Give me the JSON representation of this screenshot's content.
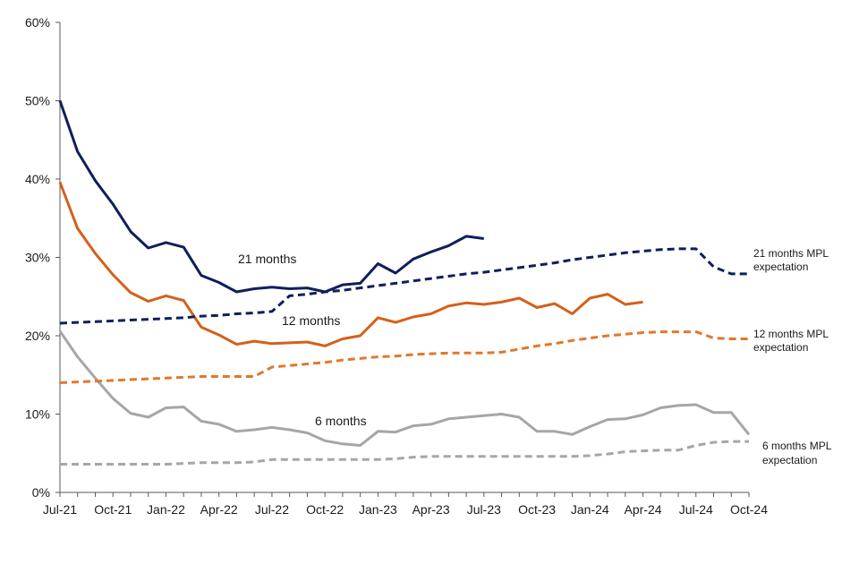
{
  "chart_data": {
    "type": "line",
    "title": "",
    "xlabel": "",
    "ylabel": "",
    "ylim": [
      0,
      60
    ],
    "y_ticks": [
      "0%",
      "10%",
      "20%",
      "30%",
      "40%",
      "50%",
      "60%"
    ],
    "y_tick_values": [
      0,
      10,
      20,
      30,
      40,
      50,
      60
    ],
    "x_tick_labels": [
      "Jul-21",
      "Oct-21",
      "Jan-22",
      "Apr-22",
      "Jul-22",
      "Oct-22",
      "Jan-23",
      "Apr-23",
      "Jul-23",
      "Oct-23",
      "Jan-24",
      "Apr-24",
      "Jul-24",
      "Oct-24"
    ],
    "x_range": [
      "Jul-21",
      "Oct-24"
    ],
    "grid": false,
    "legend": "none",
    "series": [
      {
        "name": "21 months",
        "color": "#0f1f5c",
        "style": "solid",
        "values": [
          50.0,
          43.5,
          39.8,
          36.8,
          33.3,
          31.2,
          31.9,
          31.3,
          27.7,
          26.8,
          25.6,
          26.0,
          26.2,
          26.0,
          26.1,
          25.6,
          26.5,
          26.7,
          29.2,
          28.0,
          29.8,
          30.7,
          31.5,
          32.7,
          32.4
        ]
      },
      {
        "name": "12 months",
        "color": "#d4601a",
        "style": "solid",
        "values": [
          39.6,
          33.7,
          30.5,
          27.8,
          25.5,
          24.4,
          25.1,
          24.5,
          21.1,
          20.1,
          18.9,
          19.3,
          19.0,
          19.1,
          19.2,
          18.7,
          19.6,
          20.0,
          22.3,
          21.7,
          22.4,
          22.8,
          23.8,
          24.2,
          24.0,
          24.3,
          24.8,
          23.6,
          24.1,
          22.8,
          24.8,
          25.3,
          24.0,
          24.3
        ]
      },
      {
        "name": "6 months",
        "color": "#a6a6a6",
        "style": "solid",
        "values": [
          20.6,
          17.3,
          14.6,
          12.0,
          10.1,
          9.6,
          10.8,
          10.9,
          9.1,
          8.7,
          7.8,
          8.0,
          8.3,
          8.0,
          7.6,
          6.6,
          6.2,
          6.0,
          7.8,
          7.7,
          8.5,
          8.7,
          9.4,
          9.6,
          9.8,
          10.0,
          9.6,
          7.8,
          7.8,
          7.4,
          8.4,
          9.3,
          9.4,
          9.9,
          10.8,
          11.1,
          11.2,
          10.2,
          10.2,
          7.4
        ]
      },
      {
        "name": "21 months MPL expectation",
        "color": "#0f1f5c",
        "style": "dashed",
        "values": [
          21.6,
          21.7,
          21.8,
          21.9,
          22.0,
          22.1,
          22.2,
          22.3,
          22.5,
          22.6,
          22.8,
          22.9,
          23.1,
          25.1,
          25.3,
          25.6,
          25.8,
          26.1,
          26.4,
          26.7,
          27.0,
          27.3,
          27.6,
          27.9,
          28.1,
          28.4,
          28.7,
          29.0,
          29.3,
          29.7,
          30.0,
          30.3,
          30.6,
          30.8,
          31.0,
          31.1,
          31.1,
          28.8,
          27.9,
          27.9
        ]
      },
      {
        "name": "12 months MPL expectation",
        "color": "#e0782c",
        "style": "dashed",
        "values": [
          14.0,
          14.1,
          14.2,
          14.3,
          14.4,
          14.5,
          14.6,
          14.7,
          14.8,
          14.8,
          14.8,
          14.8,
          16.0,
          16.2,
          16.4,
          16.6,
          16.9,
          17.1,
          17.3,
          17.4,
          17.6,
          17.7,
          17.8,
          17.8,
          17.8,
          17.9,
          18.3,
          18.7,
          19.0,
          19.4,
          19.7,
          20.0,
          20.2,
          20.4,
          20.5,
          20.5,
          20.5,
          19.7,
          19.6,
          19.6
        ]
      },
      {
        "name": "6 months MPL expectation",
        "color": "#a6a6a6",
        "style": "dashed",
        "values": [
          3.6,
          3.6,
          3.6,
          3.6,
          3.6,
          3.6,
          3.6,
          3.7,
          3.8,
          3.8,
          3.8,
          3.9,
          4.2,
          4.2,
          4.2,
          4.2,
          4.2,
          4.2,
          4.2,
          4.3,
          4.5,
          4.6,
          4.6,
          4.6,
          4.6,
          4.6,
          4.6,
          4.6,
          4.6,
          4.6,
          4.7,
          4.9,
          5.2,
          5.3,
          5.4,
          5.4,
          6.0,
          6.4,
          6.5,
          6.5
        ]
      }
    ],
    "inline_labels": [
      "21 months",
      "12 months",
      "6 months"
    ],
    "end_labels": [
      [
        "21 months MPL",
        "expectation"
      ],
      [
        "12 months MPL",
        "expectation"
      ],
      [
        "6 months MPL",
        "expectation"
      ]
    ]
  }
}
